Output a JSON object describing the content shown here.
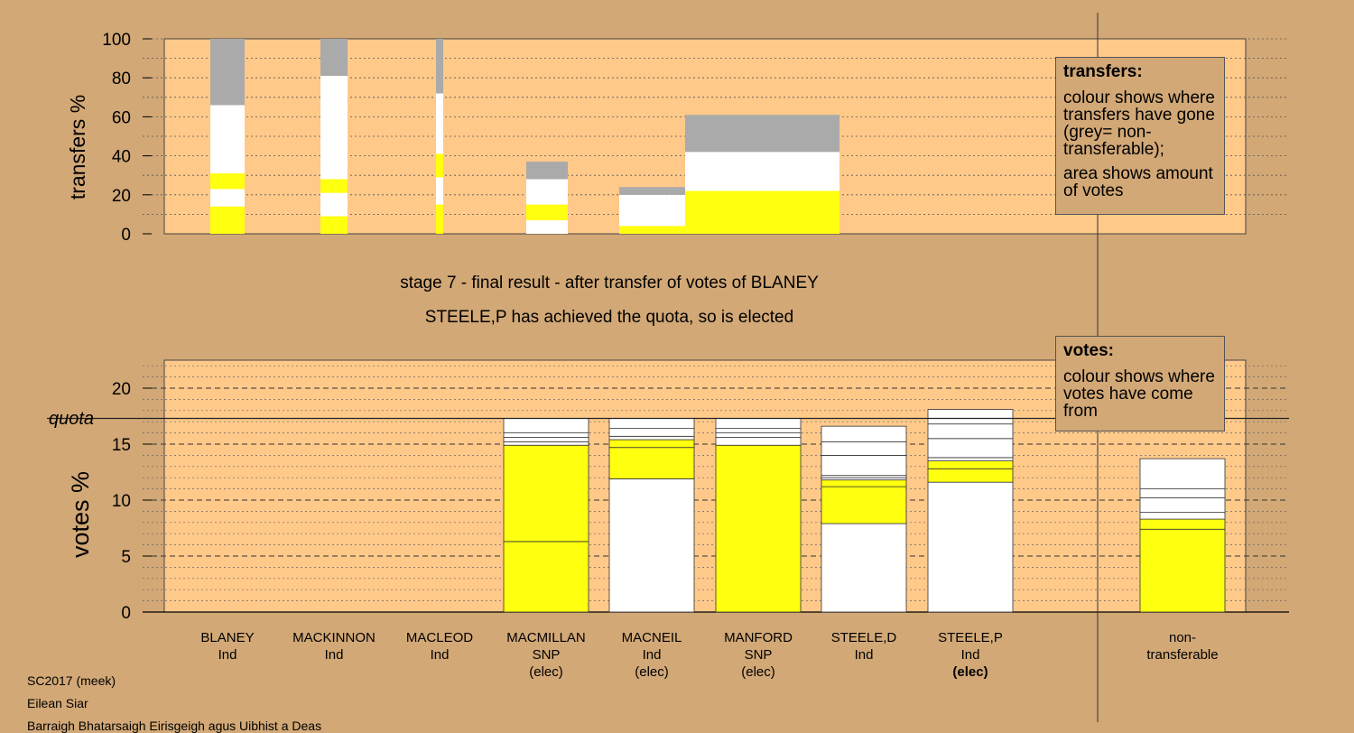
{
  "colors": {
    "background": "#D2A876",
    "plot_bg": "#FFC98A",
    "yellow": "#FFFF10",
    "white": "#FFFFFF",
    "grey": "#AAAAAA"
  },
  "stage": {
    "line1": "stage 7 - final result - after transfer of votes of BLANEY",
    "line2": "STEELE,P has achieved the quota, so is elected"
  },
  "legend_transfers": {
    "title": "transfers:",
    "body1": "colour shows where transfers have gone (grey= non-transferable);",
    "body2": "area shows amount of votes"
  },
  "legend_votes": {
    "title": "votes:",
    "body1": "colour shows where votes have come from"
  },
  "footer": {
    "line1": "SC2017 (meek)",
    "line2": "Eilean Siar",
    "line3": "Barraigh Bhatarsaigh Eirisgeigh agus Uibhist a Deas"
  },
  "candidates": [
    {
      "name": "BLANEY",
      "party": "Ind",
      "status": ""
    },
    {
      "name": "MACKINNON",
      "party": "Ind",
      "status": ""
    },
    {
      "name": "MACLEOD",
      "party": "Ind",
      "status": ""
    },
    {
      "name": "MACMILLAN",
      "party": "SNP",
      "status": "(elec)"
    },
    {
      "name": "MACNEIL",
      "party": "Ind",
      "status": "(elec)"
    },
    {
      "name": "MANFORD",
      "party": "SNP",
      "status": "(elec)"
    },
    {
      "name": "STEELE,D",
      "party": "Ind",
      "status": ""
    },
    {
      "name": "STEELE,P",
      "party": "Ind",
      "status": "(elec)"
    },
    {
      "name": "non-",
      "party": "transferable",
      "status": ""
    }
  ],
  "chart_data": [
    {
      "type": "bar",
      "ylabel": "transfers %",
      "ylim": [
        0,
        100
      ],
      "yticks": [
        0,
        20,
        40,
        60,
        80,
        100
      ],
      "note": "stacked transfer bars; width shows amount of votes",
      "bars": [
        {
          "segments": [
            {
              "color": "yellow",
              "value": 14
            },
            {
              "color": "white",
              "value": 9
            },
            {
              "color": "yellow",
              "value": 8
            },
            {
              "color": "white",
              "value": 35
            },
            {
              "color": "grey",
              "value": 34
            }
          ]
        },
        {
          "segments": [
            {
              "color": "yellow",
              "value": 9
            },
            {
              "color": "white",
              "value": 12
            },
            {
              "color": "yellow",
              "value": 7
            },
            {
              "color": "white",
              "value": 53
            },
            {
              "color": "grey",
              "value": 19
            }
          ]
        },
        {
          "segments": [
            {
              "color": "yellow",
              "value": 15
            },
            {
              "color": "white",
              "value": 14
            },
            {
              "color": "yellow",
              "value": 12
            },
            {
              "color": "white",
              "value": 31
            },
            {
              "color": "grey",
              "value": 28
            }
          ]
        },
        {
          "segments": [
            {
              "color": "white",
              "value": 7
            },
            {
              "color": "yellow",
              "value": 8
            },
            {
              "color": "white",
              "value": 13
            },
            {
              "color": "grey",
              "value": 9
            }
          ]
        },
        {
          "segments": [
            {
              "color": "yellow",
              "value": 4
            },
            {
              "color": "white",
              "value": 16
            },
            {
              "color": "grey",
              "value": 4
            }
          ]
        },
        {
          "segments": [
            {
              "color": "yellow",
              "value": 22
            },
            {
              "color": "white",
              "value": 20
            },
            {
              "color": "grey",
              "value": 19
            }
          ]
        }
      ]
    },
    {
      "type": "bar",
      "ylabel": "votes %",
      "ylim": [
        0,
        22.5
      ],
      "yticks": [
        0,
        5,
        10,
        15,
        20
      ],
      "quota": 17.3,
      "quota_label": "quota",
      "categories": [
        "BLANEY Ind",
        "MACKINNON Ind",
        "MACLEOD Ind",
        "MACMILLAN SNP (elec)",
        "MACNEIL Ind (elec)",
        "MANFORD SNP (elec)",
        "STEELE,D Ind",
        "STEELE,P Ind (elec)",
        "non-transferable"
      ],
      "series": [
        {
          "values": [
            0,
            0,
            0,
            17.3,
            17.3,
            17.3,
            16.6,
            18.1,
            13.7
          ]
        }
      ],
      "stacks": [
        [],
        [],
        [],
        [
          {
            "color": "yellow",
            "value": 6.3
          },
          {
            "color": "yellow",
            "value": 8.6
          },
          {
            "color": "white",
            "value": 0.3
          },
          {
            "color": "white",
            "value": 0.4
          },
          {
            "color": "white",
            "value": 0.4
          },
          {
            "color": "white",
            "value": 1.3
          }
        ],
        [
          {
            "color": "white",
            "value": 11.9
          },
          {
            "color": "yellow",
            "value": 2.8
          },
          {
            "color": "yellow",
            "value": 0.7
          },
          {
            "color": "white",
            "value": 0.3
          },
          {
            "color": "white",
            "value": 0.7
          },
          {
            "color": "white",
            "value": 0.9
          }
        ],
        [
          {
            "color": "yellow",
            "value": 14.9
          },
          {
            "color": "white",
            "value": 0.7
          },
          {
            "color": "white",
            "value": 0.4
          },
          {
            "color": "white",
            "value": 0.4
          },
          {
            "color": "white",
            "value": 0.9
          }
        ],
        [
          {
            "color": "white",
            "value": 7.9
          },
          {
            "color": "yellow",
            "value": 3.3
          },
          {
            "color": "yellow",
            "value": 0.6
          },
          {
            "color": "white",
            "value": 0.2
          },
          {
            "color": "white",
            "value": 0.2
          },
          {
            "color": "white",
            "value": 1.8
          },
          {
            "color": "white",
            "value": 1.2
          },
          {
            "color": "white",
            "value": 1.4
          }
        ],
        [
          {
            "color": "white",
            "value": 11.6
          },
          {
            "color": "yellow",
            "value": 1.2
          },
          {
            "color": "yellow",
            "value": 0.7
          },
          {
            "color": "white",
            "value": 0.3
          },
          {
            "color": "white",
            "value": 1.7
          },
          {
            "color": "white",
            "value": 1.3
          },
          {
            "color": "white",
            "value": 1.3
          }
        ],
        [
          {
            "color": "yellow",
            "value": 7.4
          },
          {
            "color": "yellow",
            "value": 0.9
          },
          {
            "color": "white",
            "value": 0.6
          },
          {
            "color": "white",
            "value": 1.3
          },
          {
            "color": "white",
            "value": 0.8
          },
          {
            "color": "white",
            "value": 2.7
          }
        ]
      ]
    }
  ]
}
